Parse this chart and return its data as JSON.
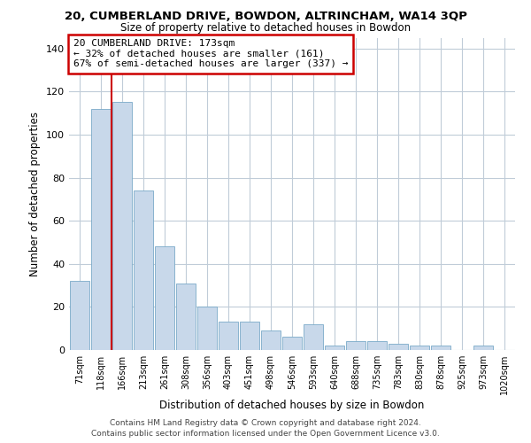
{
  "title": "20, CUMBERLAND DRIVE, BOWDON, ALTRINCHAM, WA14 3QP",
  "subtitle": "Size of property relative to detached houses in Bowdon",
  "xlabel": "Distribution of detached houses by size in Bowdon",
  "ylabel": "Number of detached properties",
  "bar_color": "#c8d8ea",
  "bar_edge_color": "#7aaac8",
  "categories": [
    "71sqm",
    "118sqm",
    "166sqm",
    "213sqm",
    "261sqm",
    "308sqm",
    "356sqm",
    "403sqm",
    "451sqm",
    "498sqm",
    "546sqm",
    "593sqm",
    "640sqm",
    "688sqm",
    "735sqm",
    "783sqm",
    "830sqm",
    "878sqm",
    "925sqm",
    "973sqm",
    "1020sqm"
  ],
  "values": [
    32,
    112,
    115,
    74,
    48,
    31,
    20,
    13,
    13,
    9,
    6,
    12,
    2,
    4,
    4,
    3,
    2,
    2,
    0,
    2,
    0
  ],
  "vline_x_index": 2,
  "vline_color": "#cc0000",
  "annotation_title": "20 CUMBERLAND DRIVE: 173sqm",
  "annotation_line1": "← 32% of detached houses are smaller (161)",
  "annotation_line2": "67% of semi-detached houses are larger (337) →",
  "annotation_box_color": "#ffffff",
  "annotation_box_edge": "#cc0000",
  "ylim": [
    0,
    145
  ],
  "yticks": [
    0,
    20,
    40,
    60,
    80,
    100,
    120,
    140
  ],
  "footer1": "Contains HM Land Registry data © Crown copyright and database right 2024.",
  "footer2": "Contains public sector information licensed under the Open Government Licence v3.0.",
  "background_color": "#ffffff",
  "grid_color": "#c0ccd8"
}
